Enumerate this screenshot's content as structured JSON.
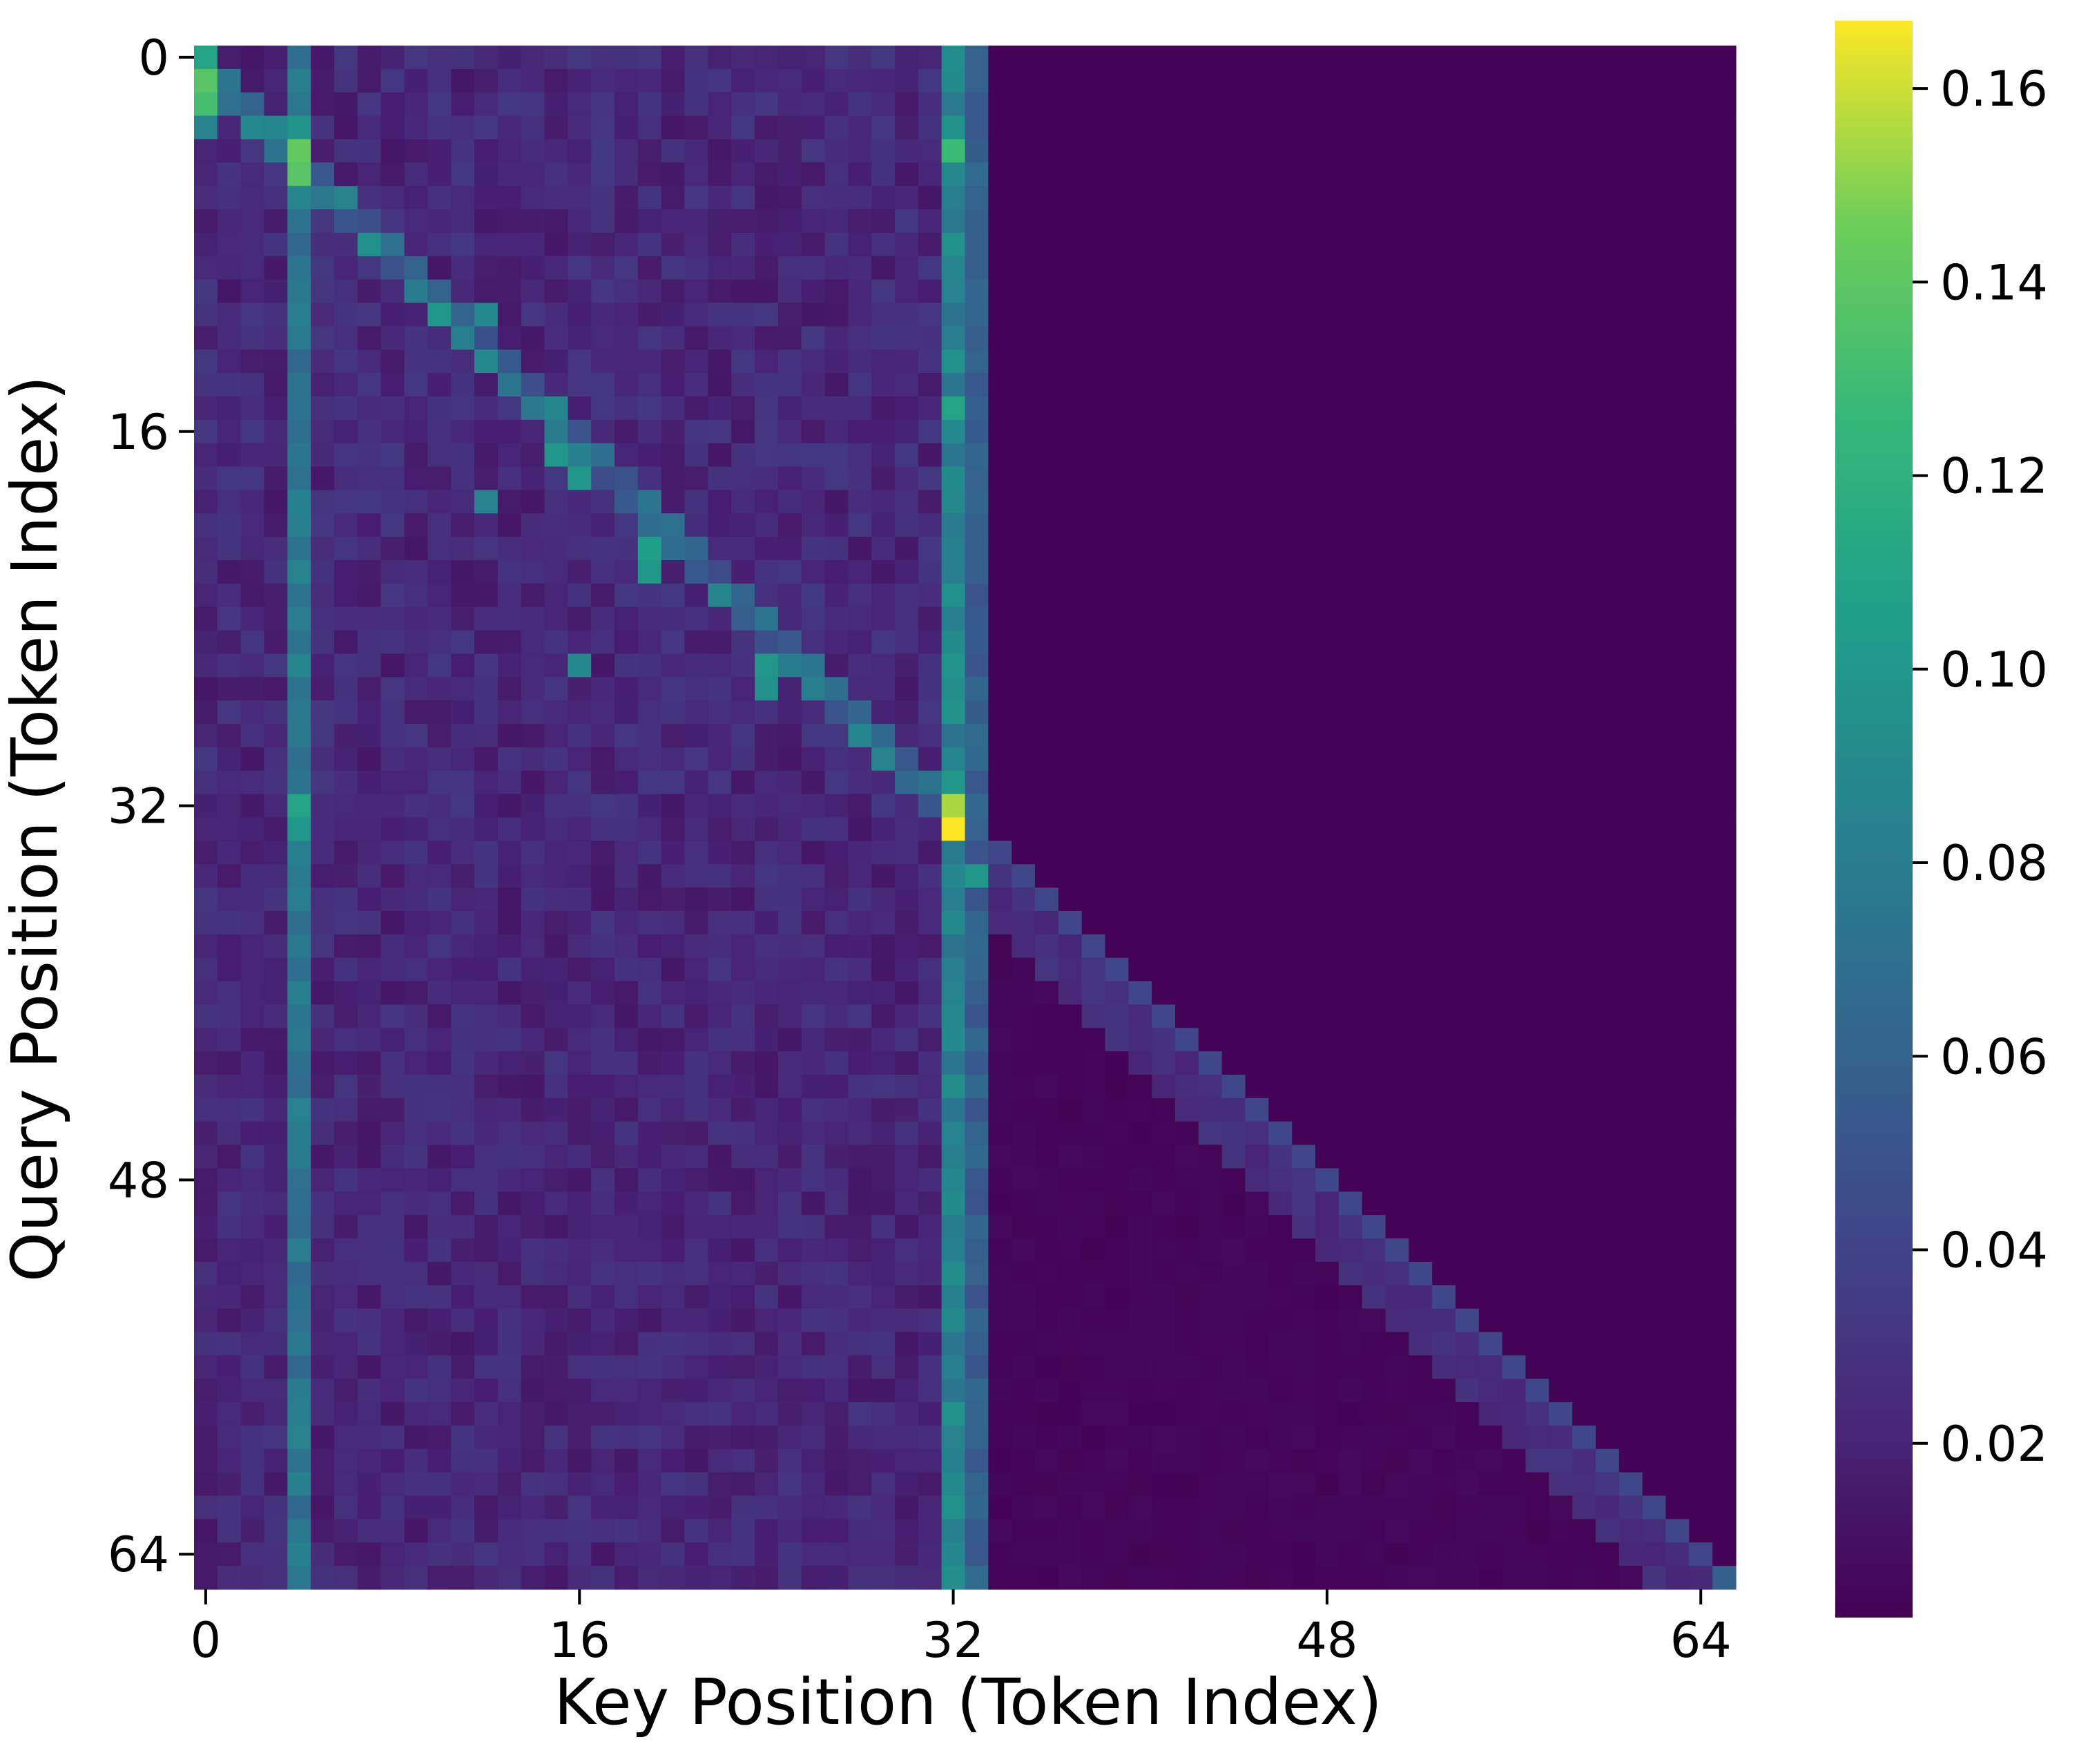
{
  "chart_data": {
    "type": "heatmap",
    "title": "",
    "xlabel": "Key Position (Token Index)",
    "ylabel": "Query Position (Token Index)",
    "n_rows": 66,
    "n_cols": 66,
    "x_ticks": [
      0,
      16,
      32,
      48,
      64
    ],
    "y_ticks": [
      0,
      16,
      32,
      48,
      64
    ],
    "x_tick_labels": [
      "0",
      "16",
      "32",
      "48",
      "64"
    ],
    "y_tick_labels": [
      "0",
      "16",
      "32",
      "48",
      "64"
    ],
    "colorbar": {
      "colormap": "viridis",
      "vmin": 0.002,
      "vmax": 0.167,
      "ticks": [
        0.02,
        0.04,
        0.06,
        0.08,
        0.1,
        0.12,
        0.14,
        0.16
      ],
      "tick_labels": [
        "0.02",
        "0.04",
        "0.06",
        "0.08",
        "0.10",
        "0.12",
        "0.14",
        "0.16"
      ]
    },
    "structure": {
      "sink_columns": [
        {
          "col": 4,
          "typical_value": 0.075
        },
        {
          "col": 32,
          "typical_value": 0.085
        },
        {
          "col": 33,
          "typical_value": 0.058
        }
      ],
      "region_1": {
        "rows": [
          0,
          32
        ],
        "cols": [
          0,
          33
        ],
        "background": 0.022,
        "diagonal_peak": 0.09
      },
      "region_2": {
        "rows": [
          33,
          65
        ],
        "cols": [
          34,
          65
        ],
        "background": 0.004,
        "diagonal_value": 0.042,
        "near_diagonal_value": 0.026
      },
      "lower_left_background": 0.022,
      "upper_right_background": 0.003
    },
    "highlights": [
      {
        "row": 0,
        "col": 0,
        "value": 0.11
      },
      {
        "row": 1,
        "col": 0,
        "value": 0.138
      },
      {
        "row": 2,
        "col": 0,
        "value": 0.132
      },
      {
        "row": 3,
        "col": 0,
        "value": 0.085
      },
      {
        "row": 1,
        "col": 1,
        "value": 0.075
      },
      {
        "row": 3,
        "col": 2,
        "value": 0.09
      },
      {
        "row": 3,
        "col": 4,
        "value": 0.098
      },
      {
        "row": 4,
        "col": 4,
        "value": 0.142
      },
      {
        "row": 5,
        "col": 4,
        "value": 0.138
      },
      {
        "row": 6,
        "col": 6,
        "value": 0.085
      },
      {
        "row": 8,
        "col": 7,
        "value": 0.095
      },
      {
        "row": 11,
        "col": 10,
        "value": 0.1
      },
      {
        "row": 11,
        "col": 12,
        "value": 0.09
      },
      {
        "row": 13,
        "col": 12,
        "value": 0.09
      },
      {
        "row": 17,
        "col": 15,
        "value": 0.1
      },
      {
        "row": 18,
        "col": 16,
        "value": 0.1
      },
      {
        "row": 19,
        "col": 12,
        "value": 0.085
      },
      {
        "row": 21,
        "col": 19,
        "value": 0.105
      },
      {
        "row": 22,
        "col": 19,
        "value": 0.1
      },
      {
        "row": 26,
        "col": 24,
        "value": 0.1
      },
      {
        "row": 27,
        "col": 24,
        "value": 0.095
      },
      {
        "row": 26,
        "col": 16,
        "value": 0.09
      },
      {
        "row": 4,
        "col": 32,
        "value": 0.128
      },
      {
        "row": 15,
        "col": 32,
        "value": 0.11
      },
      {
        "row": 31,
        "col": 32,
        "value": 0.1
      },
      {
        "row": 32,
        "col": 32,
        "value": 0.155
      },
      {
        "row": 33,
        "col": 32,
        "value": 0.167
      },
      {
        "row": 32,
        "col": 4,
        "value": 0.11
      },
      {
        "row": 33,
        "col": 4,
        "value": 0.1
      },
      {
        "row": 35,
        "col": 33,
        "value": 0.1
      },
      {
        "row": 65,
        "col": 65,
        "value": 0.058
      }
    ]
  }
}
